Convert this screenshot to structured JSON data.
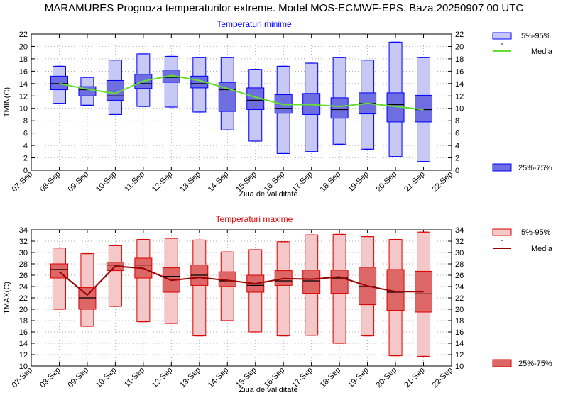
{
  "title": "MARAMURES  Prognoza temperaturilor extreme.  Model MOS-ECMWF-EPS. Baza:20250907 00 UTC",
  "chart_data": [
    {
      "type": "boxplot",
      "title": "Temperaturi minime",
      "title_color": "#0000ff",
      "xlabel": "Ziua de validitate",
      "ylabel": "TMIN(C)",
      "ylim": [
        0,
        22
      ],
      "yticks": [
        0,
        2,
        4,
        6,
        8,
        10,
        12,
        14,
        16,
        18,
        20,
        22
      ],
      "grid": true,
      "x_tick_labels": [
        "07-Sep",
        "08-Sep",
        "09-Sep",
        "10-Sep",
        "11-Sep",
        "12-Sep",
        "13-Sep",
        "14-Sep",
        "15-Sep",
        "16-Sep",
        "17-Sep",
        "18-Sep",
        "19-Sep",
        "20-Sep",
        "21-Sep",
        "22-Sep"
      ],
      "categories": [
        "08-Sep",
        "09-Sep",
        "10-Sep",
        "11-Sep",
        "12-Sep",
        "13-Sep",
        "14-Sep",
        "15-Sep",
        "16-Sep",
        "17-Sep",
        "18-Sep",
        "19-Sep",
        "20-Sep",
        "21-Sep"
      ],
      "legend": {
        "placement": "right",
        "entries": [
          {
            "label": "5%-95%",
            "kind": "whisker-box"
          },
          {
            "label": "Media",
            "kind": "line"
          },
          {
            "label": "25%-75%",
            "kind": "box"
          }
        ]
      },
      "colors": {
        "whisker": "#0000ff",
        "p5_95_fill": "#c8c8f4",
        "p25_75_fill": "#6e6ee0",
        "mean_line": "#66dd33",
        "median": "#000000"
      },
      "boxes": [
        {
          "p5": 10.8,
          "p25": 13.0,
          "median": 14.0,
          "p75": 15.2,
          "p95": 16.8
        },
        {
          "p5": 10.5,
          "p25": 12.0,
          "median": 13.0,
          "p75": 13.5,
          "p95": 15.0
        },
        {
          "p5": 9.0,
          "p25": 11.3,
          "median": 12.0,
          "p75": 14.5,
          "p95": 17.8
        },
        {
          "p5": 10.3,
          "p25": 13.2,
          "median": 14.0,
          "p75": 15.5,
          "p95": 18.8
        },
        {
          "p5": 10.2,
          "p25": 14.2,
          "median": 15.0,
          "p75": 16.2,
          "p95": 18.4
        },
        {
          "p5": 9.4,
          "p25": 13.3,
          "median": 14.0,
          "p75": 15.2,
          "p95": 18.2
        },
        {
          "p5": 6.5,
          "p25": 9.5,
          "median": 13.0,
          "p75": 14.2,
          "p95": 18.2
        },
        {
          "p5": 4.7,
          "p25": 9.8,
          "median": 11.3,
          "p75": 13.3,
          "p95": 16.3
        },
        {
          "p5": 2.7,
          "p25": 9.2,
          "median": 10.0,
          "p75": 12.2,
          "p95": 16.8
        },
        {
          "p5": 3.0,
          "p25": 9.0,
          "median": 10.7,
          "p75": 12.4,
          "p95": 17.3
        },
        {
          "p5": 4.2,
          "p25": 8.4,
          "median": 9.8,
          "p75": 11.7,
          "p95": 18.2
        },
        {
          "p5": 3.4,
          "p25": 9.1,
          "median": 10.8,
          "p75": 12.5,
          "p95": 17.8
        },
        {
          "p5": 2.2,
          "p25": 7.8,
          "median": 10.6,
          "p75": 12.5,
          "p95": 20.7
        },
        {
          "p5": 1.4,
          "p25": 7.8,
          "median": 9.8,
          "p75": 12.1,
          "p95": 18.2
        }
      ],
      "mean": [
        14.0,
        13.1,
        12.4,
        14.4,
        15.3,
        14.5,
        13.2,
        11.8,
        10.6,
        10.6,
        10.3,
        10.8,
        10.3,
        9.8
      ]
    },
    {
      "type": "boxplot",
      "title": "Temperaturi maxime",
      "title_color": "#dd0000",
      "xlabel": "Ziua de validitate",
      "ylabel": "TMAX(C)",
      "ylim": [
        10,
        34
      ],
      "yticks": [
        10,
        12,
        14,
        16,
        18,
        20,
        22,
        24,
        26,
        28,
        30,
        32,
        34
      ],
      "grid": true,
      "x_tick_labels": [
        "07-Sep",
        "08-Sep",
        "09-Sep",
        "10-Sep",
        "11-Sep",
        "12-Sep",
        "13-Sep",
        "14-Sep",
        "15-Sep",
        "16-Sep",
        "17-Sep",
        "18-Sep",
        "19-Sep",
        "20-Sep",
        "21-Sep",
        "22-Sep"
      ],
      "categories": [
        "08-Sep",
        "09-Sep",
        "10-Sep",
        "11-Sep",
        "12-Sep",
        "13-Sep",
        "14-Sep",
        "15-Sep",
        "16-Sep",
        "17-Sep",
        "18-Sep",
        "19-Sep",
        "20-Sep",
        "21-Sep"
      ],
      "legend": {
        "placement": "right",
        "entries": [
          {
            "label": "5%-95%",
            "kind": "whisker-box"
          },
          {
            "label": "Media",
            "kind": "line"
          },
          {
            "label": "25%-75%",
            "kind": "box"
          }
        ]
      },
      "colors": {
        "whisker": "#dd0000",
        "p5_95_fill": "#f4c8c8",
        "p25_75_fill": "#dd6666",
        "mean_line": "#990000",
        "median": "#000000"
      },
      "boxes": [
        {
          "p5": 20.0,
          "p25": 25.5,
          "median": 27.0,
          "p75": 28.0,
          "p95": 30.8
        },
        {
          "p5": 17.0,
          "p25": 20.0,
          "median": 22.0,
          "p75": 23.8,
          "p95": 29.8
        },
        {
          "p5": 20.5,
          "p25": 26.8,
          "median": 27.8,
          "p75": 28.3,
          "p95": 31.2
        },
        {
          "p5": 17.8,
          "p25": 25.5,
          "median": 27.8,
          "p75": 29.0,
          "p95": 32.3
        },
        {
          "p5": 17.5,
          "p25": 23.0,
          "median": 25.8,
          "p75": 27.3,
          "p95": 32.5
        },
        {
          "p5": 15.3,
          "p25": 24.2,
          "median": 26.0,
          "p75": 27.8,
          "p95": 32.2
        },
        {
          "p5": 18.0,
          "p25": 24.0,
          "median": 25.0,
          "p75": 26.6,
          "p95": 30.1
        },
        {
          "p5": 16.0,
          "p25": 23.0,
          "median": 24.2,
          "p75": 26.0,
          "p95": 30.5
        },
        {
          "p5": 15.3,
          "p25": 24.2,
          "median": 25.0,
          "p75": 26.8,
          "p95": 31.9
        },
        {
          "p5": 15.4,
          "p25": 22.8,
          "median": 25.0,
          "p75": 26.9,
          "p95": 33.1
        },
        {
          "p5": 14.0,
          "p25": 22.8,
          "median": 25.5,
          "p75": 26.9,
          "p95": 33.2
        },
        {
          "p5": 15.3,
          "p25": 20.8,
          "median": 24.0,
          "p75": 27.4,
          "p95": 32.8
        },
        {
          "p5": 11.8,
          "p25": 19.8,
          "median": 23.0,
          "p75": 27.0,
          "p95": 32.3
        },
        {
          "p5": 11.7,
          "p25": 19.5,
          "median": 22.7,
          "p75": 26.7,
          "p95": 33.6
        }
      ],
      "mean": [
        26.6,
        22.5,
        27.6,
        27.2,
        25.1,
        25.6,
        25.1,
        24.5,
        25.4,
        25.3,
        25.7,
        24.1,
        23.1,
        23.1
      ]
    }
  ]
}
